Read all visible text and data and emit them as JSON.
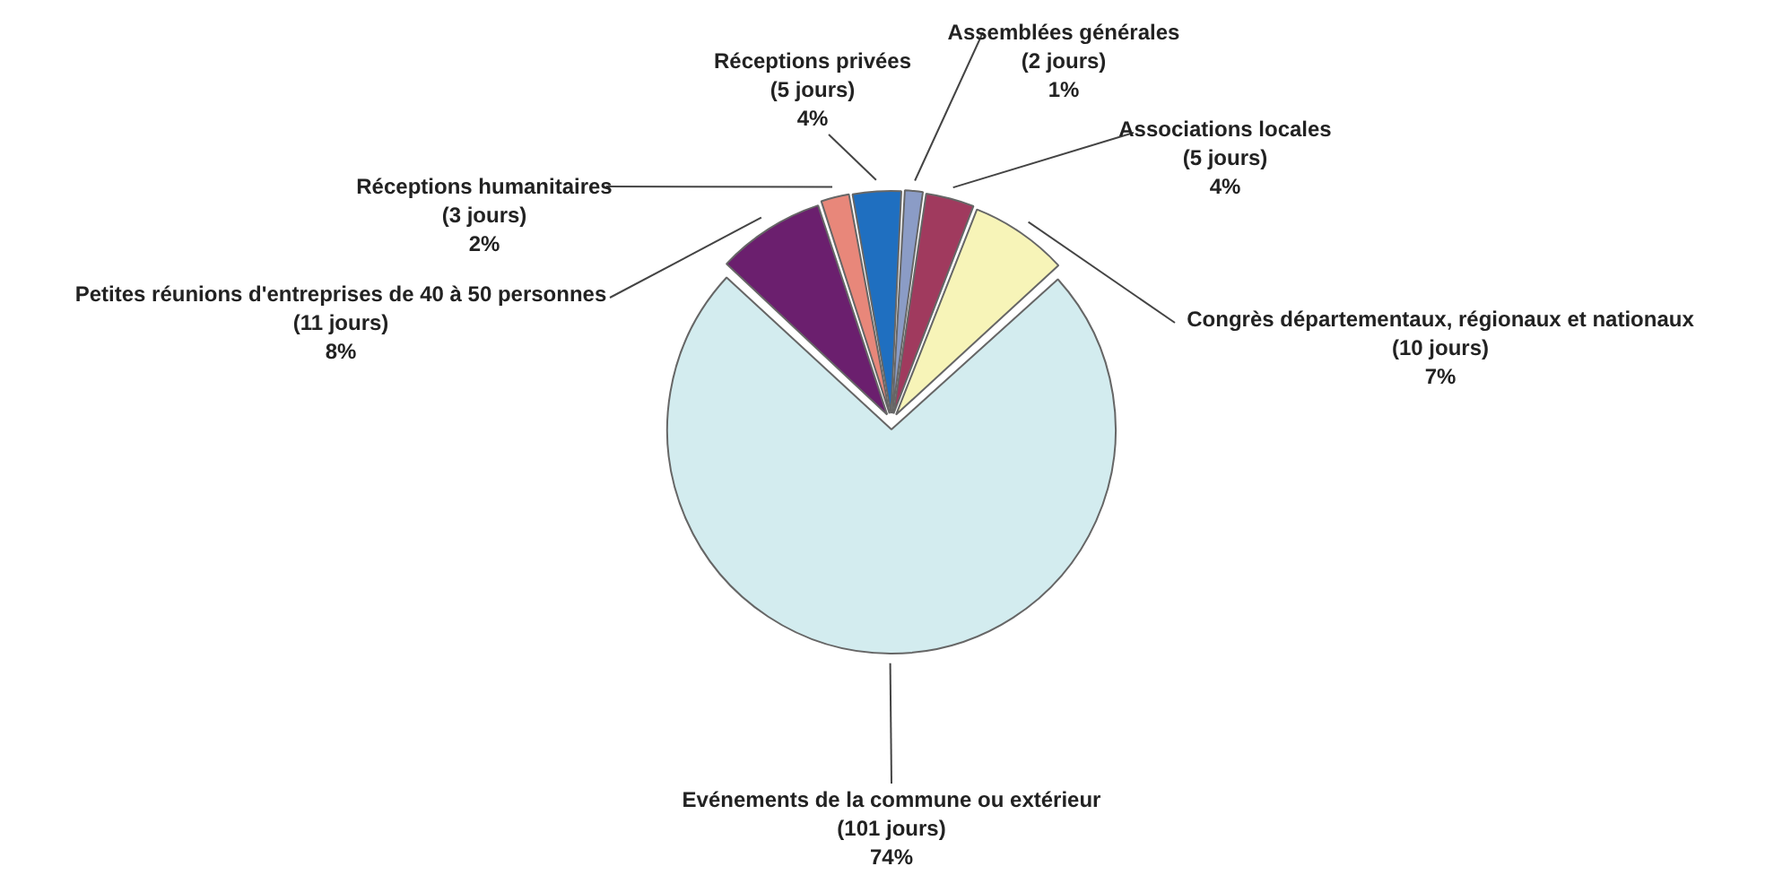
{
  "chart_data": {
    "type": "pie",
    "categories": [
      "Petites réunions d'entreprises de 40 à 50 personnes",
      "Réceptions humanitaires",
      "Réceptions privées",
      "Assemblées générales",
      "Associations locales",
      "Congrès départementaux, régionaux et nationaux",
      "Evénements de la commune ou extérieur"
    ],
    "values": [
      11,
      3,
      5,
      2,
      5,
      10,
      101
    ],
    "value_labels": [
      "(11 jours)\n8%",
      "(3 jours)\n2%",
      "(5 jours)\n4%",
      "(2 jours)\n1%",
      "(5 jours)\n4%",
      "(10 jours)\n7%",
      "(101 jours)\n74%"
    ],
    "colors": [
      "#6b1f6e",
      "#e8877a",
      "#1f6fc0",
      "#8b9cc6",
      "#a03a5e",
      "#f7f4b8",
      "#d3ecef"
    ],
    "legend": false
  }
}
